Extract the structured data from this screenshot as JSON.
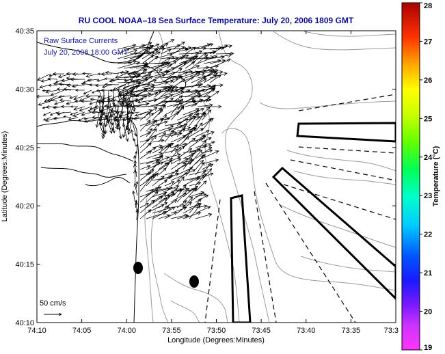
{
  "title": "RU COOL   NOAA–18  Sea Surface Temperature:  July 20, 2006 1809 GMT",
  "annotations": {
    "line1": "Raw Surface Currents",
    "line2": "July 20, 2006 18:00 GMT"
  },
  "scale_label": "50 cm/s",
  "colors": {
    "title": "#0b0b96",
    "annotation": "#1a1aa0",
    "contour": "#9a9a9a",
    "coast": "#000000"
  },
  "chart_data": {
    "type": "map",
    "xlabel": "Longitude (Degrees:Minutes)",
    "ylabel": "Latitude (Degrees:Minutes)",
    "x_ticks": [
      "74:10",
      "74:05",
      "74:00",
      "73:55",
      "73:50",
      "73:45",
      "73:40",
      "73:35",
      "73:3"
    ],
    "y_ticks": [
      "40:35",
      "40:30",
      "40:25",
      "40:20",
      "40:15",
      "40:10"
    ],
    "colorbar": {
      "label": "Temperature (°C)",
      "ticks": [
        "28",
        "27",
        "26",
        "25",
        "24",
        "23",
        "22",
        "21",
        "20",
        "19"
      ],
      "range": [
        19,
        28
      ]
    }
  }
}
